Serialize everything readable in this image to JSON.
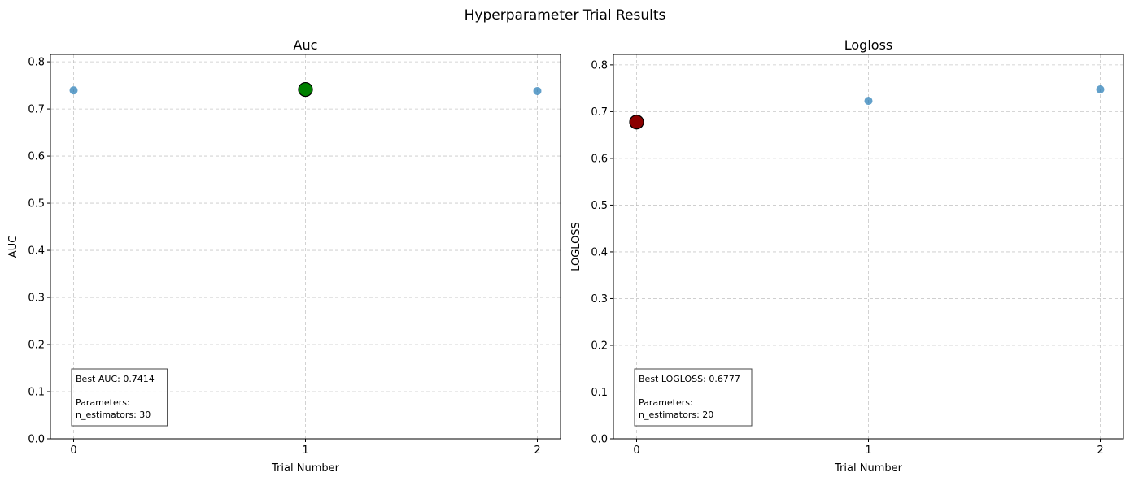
{
  "figure": {
    "suptitle": "Hyperparameter Trial Results"
  },
  "colors": {
    "trial_point": "#1f77b4",
    "best_auc_point": "#008000",
    "best_logloss_point": "#8b0000",
    "grid": "#b0b0b0"
  },
  "chart_data": [
    {
      "type": "scatter",
      "title": "Auc",
      "xlabel": "Trial Number",
      "ylabel": "AUC",
      "x_ticks": [
        0,
        1,
        2
      ],
      "y_ticks": [
        0.0,
        0.1,
        0.2,
        0.3,
        0.4,
        0.5,
        0.6,
        0.7,
        0.8
      ],
      "xlim": [
        -0.1,
        2.1
      ],
      "ylim": [
        0,
        0.8157
      ],
      "grid": true,
      "x": [
        0,
        1,
        2
      ],
      "y": [
        0.7395,
        0.7414,
        0.7382
      ],
      "best_index": 1,
      "annotation": {
        "best_line": "Best AUC: 0.7414",
        "params_header": "Parameters:",
        "params_line": "n_estimators: 30",
        "position": "bottom-left"
      }
    },
    {
      "type": "scatter",
      "title": "Logloss",
      "xlabel": "Trial Number",
      "ylabel": "LOGLOSS",
      "x_ticks": [
        0,
        1,
        2
      ],
      "y_ticks": [
        0.0,
        0.1,
        0.2,
        0.3,
        0.4,
        0.5,
        0.6,
        0.7,
        0.8
      ],
      "xlim": [
        -0.1,
        2.1
      ],
      "ylim": [
        0,
        0.8224
      ],
      "grid": true,
      "x": [
        0,
        1,
        2
      ],
      "y": [
        0.6777,
        0.7231,
        0.7476
      ],
      "best_index": 0,
      "annotation": {
        "best_line": "Best LOGLOSS: 0.6777",
        "params_header": "Parameters:",
        "params_line": "n_estimators: 20",
        "position": "bottom-left"
      }
    }
  ]
}
